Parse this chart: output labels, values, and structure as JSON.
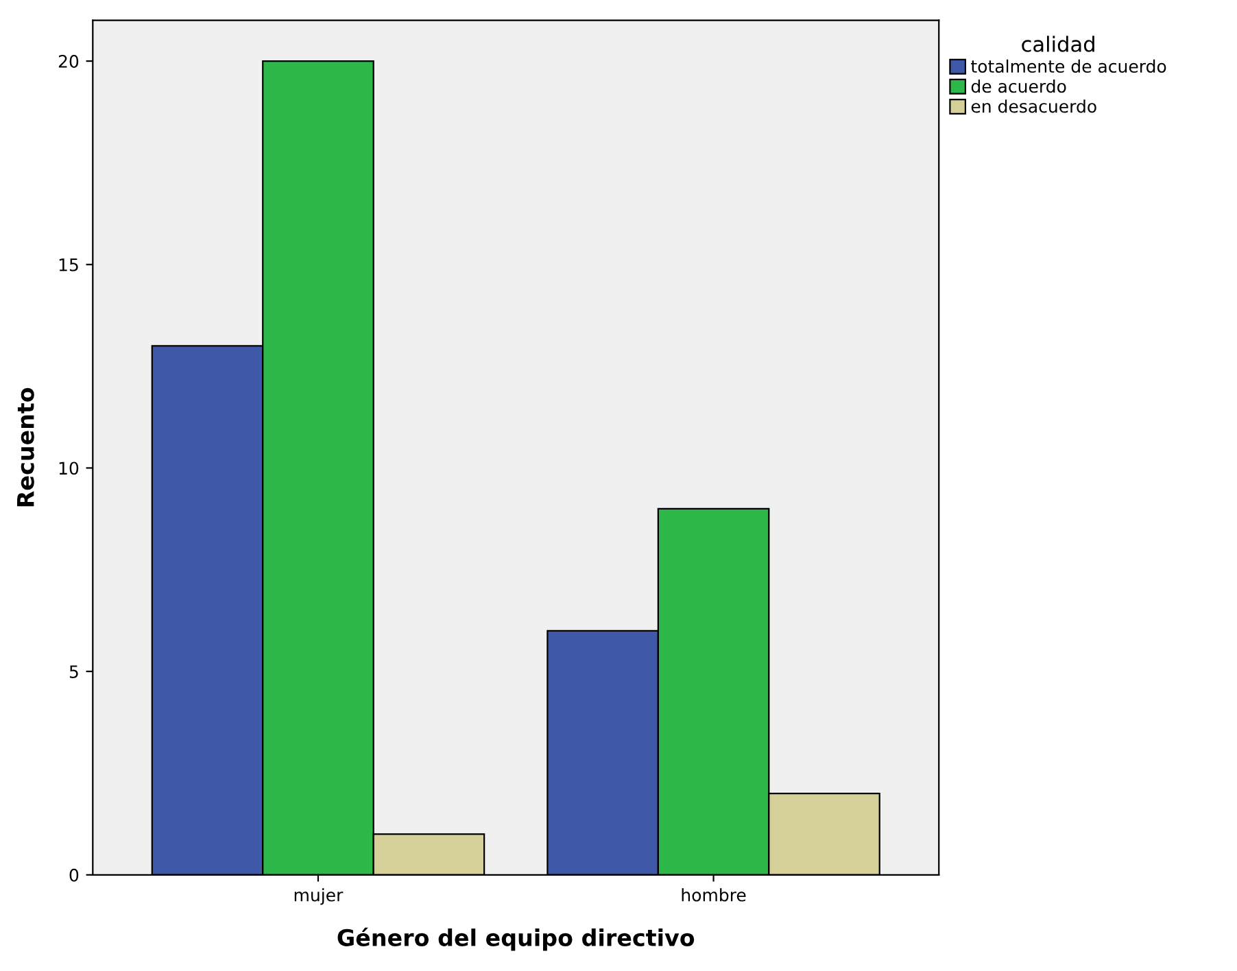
{
  "chart_data": {
    "type": "bar",
    "xlabel": "Género del equipo directivo",
    "ylabel": "Recuento",
    "legend_title": "calidad",
    "categories": [
      "mujer",
      "hombre"
    ],
    "series": [
      {
        "name": "totalmente de acuerdo",
        "color": "#3f58a8",
        "values": [
          13,
          6
        ]
      },
      {
        "name": "de acuerdo",
        "color": "#2eb84a",
        "values": [
          20,
          9
        ]
      },
      {
        "name": "en desacuerdo",
        "color": "#d5cf98",
        "values": [
          1,
          2
        ]
      }
    ],
    "ylim": [
      0,
      21
    ],
    "yticks": [
      0,
      5,
      10,
      15,
      20
    ],
    "grid": false,
    "legend": "top right"
  }
}
